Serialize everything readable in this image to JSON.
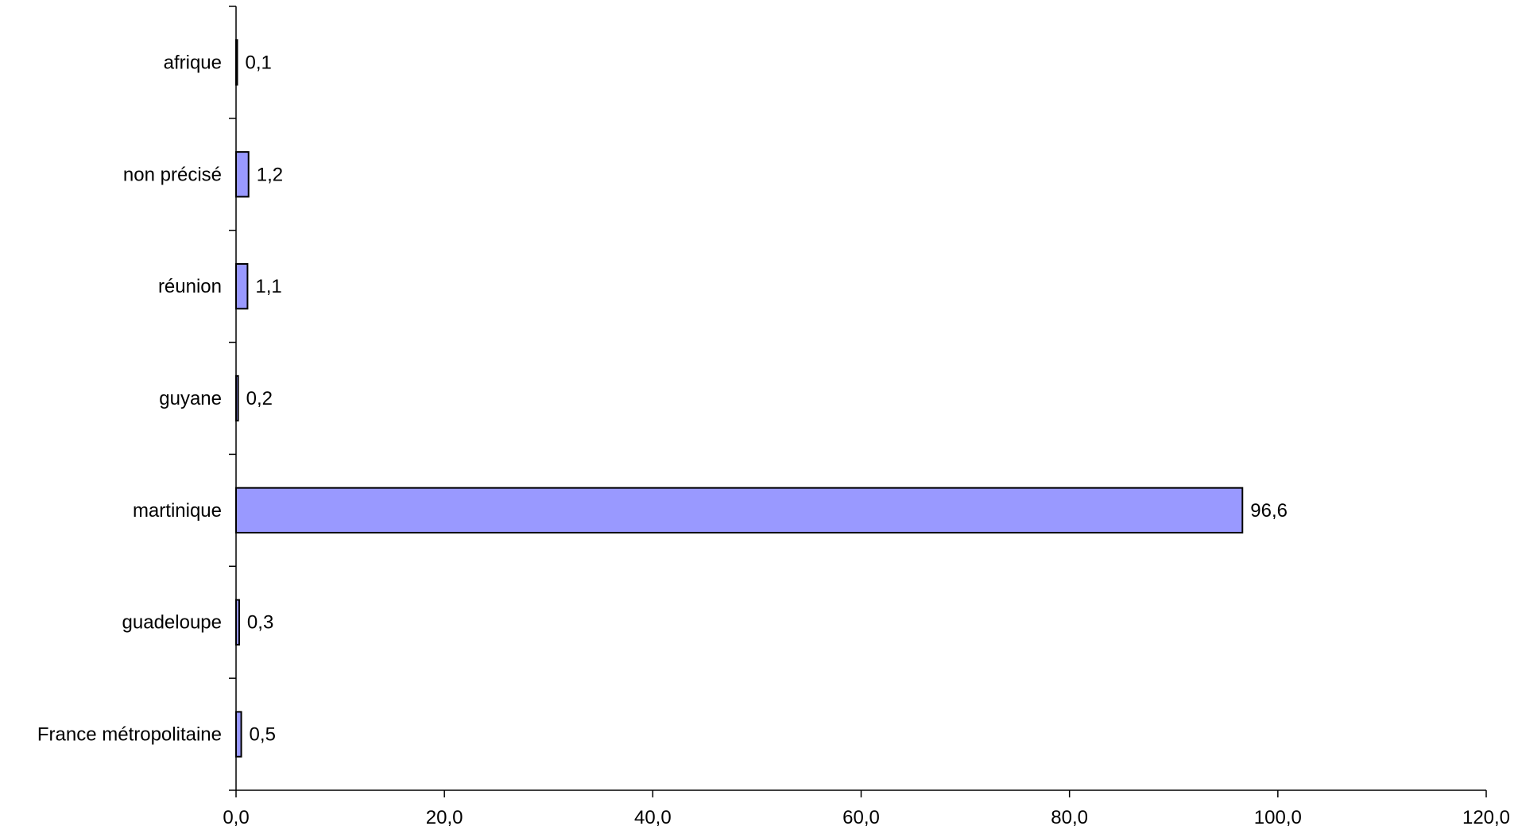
{
  "chart_data": {
    "type": "bar",
    "orientation": "horizontal",
    "categories": [
      "France métropolitaine",
      "guadeloupe",
      "martinique",
      "guyane",
      "réunion",
      "non précisé",
      "afrique"
    ],
    "values": [
      0.5,
      0.3,
      96.6,
      0.2,
      1.1,
      1.2,
      0.1
    ],
    "value_labels": [
      "0,5",
      "0,3",
      "96,6",
      "0,2",
      "1,1",
      "1,2",
      "0,1"
    ],
    "xlim": [
      0,
      120
    ],
    "x_ticks": [
      0,
      20,
      40,
      60,
      80,
      100,
      120
    ],
    "x_tick_labels": [
      "0,0",
      "20,0",
      "40,0",
      "60,0",
      "80,0",
      "100,0",
      "120,0"
    ],
    "title": "",
    "xlabel": "",
    "ylabel": "",
    "grid": false,
    "legend": "none",
    "colors": {
      "bar_fill": "#9999ff",
      "bar_stroke": "#000000",
      "axis": "#000000"
    }
  }
}
